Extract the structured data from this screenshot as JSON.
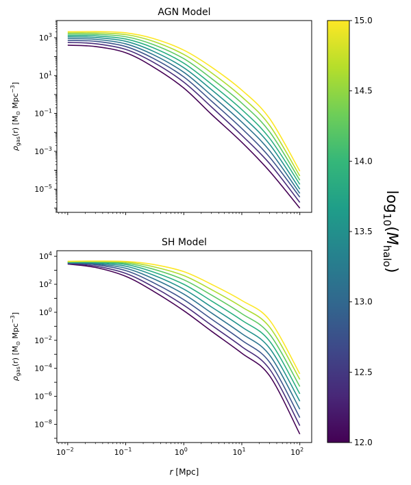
{
  "chart_data": [
    {
      "type": "line",
      "title": "AGN Model",
      "xscale": "log",
      "yscale": "log",
      "xlim": [
        0.0065,
        160
      ],
      "ylim": [
        6e-07,
        8000.0
      ],
      "x_ticks": [
        0.01,
        0.1,
        1,
        10,
        100
      ],
      "x_tick_labels_shown": false,
      "y_ticks": [
        {
          "value": 1000.0,
          "mant": "10",
          "exp": "3"
        },
        {
          "value": 10.0,
          "mant": "10",
          "exp": "1"
        },
        {
          "value": 0.1,
          "mant": "10",
          "exp": "−1"
        },
        {
          "value": 0.001,
          "mant": "10",
          "exp": "−3"
        },
        {
          "value": 1e-05,
          "mant": "10",
          "exp": "−5"
        }
      ],
      "ylabel": {
        "rho": "ρ",
        "sub": "gas",
        "mid": "(r) [M",
        "sun": "⊙",
        "unit": " Mpc",
        "exp": "−3",
        "end": "]"
      },
      "x": [
        0.01,
        0.03,
        0.1,
        0.3,
        1,
        3,
        10,
        30,
        100
      ],
      "series": [
        {
          "log10_mhalo": 12.0,
          "color": "#440154",
          "values": [
            400,
            340,
            160,
            28,
            2.2,
            0.09,
            0.003,
            9e-05,
            1e-06
          ]
        },
        {
          "log10_mhalo": 12.33,
          "color": "#472d7b",
          "values": [
            560,
            480,
            240,
            50,
            4.5,
            0.22,
            0.007,
            0.00023,
            2e-06
          ]
        },
        {
          "log10_mhalo": 12.67,
          "color": "#3b528b",
          "values": [
            720,
            640,
            340,
            80,
            8.5,
            0.45,
            0.016,
            0.0005,
            3.8e-06
          ]
        },
        {
          "log10_mhalo": 13.0,
          "color": "#2c728e",
          "values": [
            900,
            820,
            470,
            125,
            15,
            0.9,
            0.035,
            0.0011,
            6e-06
          ]
        },
        {
          "log10_mhalo": 13.33,
          "color": "#21918c",
          "values": [
            1100,
            1020,
            640,
            190,
            26,
            1.8,
            0.075,
            0.0024,
            1e-05
          ]
        },
        {
          "log10_mhalo": 13.67,
          "color": "#28ae80",
          "values": [
            1300,
            1250,
            850,
            290,
            45,
            3.5,
            0.16,
            0.005,
            1.8e-05
          ]
        },
        {
          "log10_mhalo": 14.0,
          "color": "#5ec962",
          "values": [
            1550,
            1500,
            1120,
            430,
            78,
            7,
            0.35,
            0.011,
            3e-05
          ]
        },
        {
          "log10_mhalo": 14.33,
          "color": "#addc30",
          "values": [
            1800,
            1780,
            1450,
            640,
            130,
            14,
            0.75,
            0.024,
            5e-05
          ]
        },
        {
          "log10_mhalo": 14.67,
          "color": "#fde725",
          "values": [
            2050,
            2100,
            1800,
            900,
            220,
            28,
            1.7,
            0.055,
            9e-05
          ]
        }
      ]
    },
    {
      "type": "line",
      "title": "SH Model",
      "xscale": "log",
      "yscale": "log",
      "xlim": [
        0.0065,
        160
      ],
      "ylim": [
        5e-10,
        25000.0
      ],
      "x_ticks": [
        {
          "value": 0.01,
          "mant": "10",
          "exp": "−2"
        },
        {
          "value": 0.1,
          "mant": "10",
          "exp": "−1"
        },
        {
          "value": 1,
          "mant": "10",
          "exp": "0"
        },
        {
          "value": 10,
          "mant": "10",
          "exp": "1"
        },
        {
          "value": 100,
          "mant": "10",
          "exp": "2"
        }
      ],
      "y_ticks": [
        {
          "value": 10000.0,
          "mant": "10",
          "exp": "4"
        },
        {
          "value": 100.0,
          "mant": "10",
          "exp": "2"
        },
        {
          "value": 1.0,
          "mant": "10",
          "exp": "0"
        },
        {
          "value": 0.01,
          "mant": "10",
          "exp": "−2"
        },
        {
          "value": 0.0001,
          "mant": "10",
          "exp": "−4"
        },
        {
          "value": 1e-06,
          "mant": "10",
          "exp": "−6"
        },
        {
          "value": 1e-08,
          "mant": "10",
          "exp": "−8"
        }
      ],
      "xlabel": {
        "var": "r",
        "unit": " [Mpc]"
      },
      "ylabel": {
        "rho": "ρ",
        "sub": "gas",
        "mid": "(r) [M",
        "sun": "⊙",
        "unit": " Mpc",
        "exp": "−3",
        "end": "]"
      },
      "x": [
        0.01,
        0.03,
        0.1,
        0.3,
        1,
        3,
        10,
        30,
        100
      ],
      "series": [
        {
          "log10_mhalo": 12.0,
          "color": "#440154",
          "values": [
            2800,
            1600,
            370,
            32,
            1.3,
            0.045,
            0.0012,
            3e-05,
            2e-09
          ]
        },
        {
          "log10_mhalo": 12.33,
          "color": "#472d7b",
          "values": [
            3000,
            2000,
            600,
            65,
            3.2,
            0.12,
            0.0035,
            9e-05,
            8e-09
          ]
        },
        {
          "log10_mhalo": 12.67,
          "color": "#3b528b",
          "values": [
            3200,
            2500,
            950,
            130,
            8,
            0.33,
            0.01,
            0.00028,
            3e-08
          ]
        },
        {
          "log10_mhalo": 13.0,
          "color": "#2c728e",
          "values": [
            3400,
            2900,
            1400,
            250,
            20,
            0.9,
            0.03,
            0.0009,
            1.2e-07
          ]
        },
        {
          "log10_mhalo": 13.33,
          "color": "#21918c",
          "values": [
            3600,
            3300,
            1950,
            450,
            45,
            2.4,
            0.09,
            0.0028,
            4.5e-07
          ]
        },
        {
          "log10_mhalo": 13.67,
          "color": "#28ae80",
          "values": [
            3800,
            3700,
            2600,
            750,
            100,
            6.5,
            0.27,
            0.009,
            1.5e-06
          ]
        },
        {
          "log10_mhalo": 14.0,
          "color": "#5ec962",
          "values": [
            4000,
            4000,
            3200,
            1200,
            210,
            17,
            0.8,
            0.028,
            5e-06
          ]
        },
        {
          "log10_mhalo": 14.33,
          "color": "#addc30",
          "values": [
            4200,
            4300,
            3800,
            1800,
            420,
            42,
            2.4,
            0.09,
            1.6e-05
          ]
        },
        {
          "log10_mhalo": 14.67,
          "color": "#fde725",
          "values": [
            4400,
            4600,
            4300,
            2600,
            800,
            100,
            7,
            0.28,
            4e-05
          ]
        }
      ]
    }
  ],
  "colorbar": {
    "colormap": "viridis",
    "min": 12.0,
    "max": 15.0,
    "ticks": [
      "12.0",
      "12.5",
      "13.0",
      "13.5",
      "14.0",
      "14.5",
      "15.0"
    ],
    "label": {
      "log": "log",
      "sub10": "10",
      "open": "(",
      "m": "M",
      "sub": "halo",
      "close": ")"
    },
    "stops": [
      "#440154",
      "#482878",
      "#3e4989",
      "#31688e",
      "#26828e",
      "#1f9e89",
      "#35b779",
      "#6ece58",
      "#b5de2b",
      "#fde725"
    ]
  }
}
